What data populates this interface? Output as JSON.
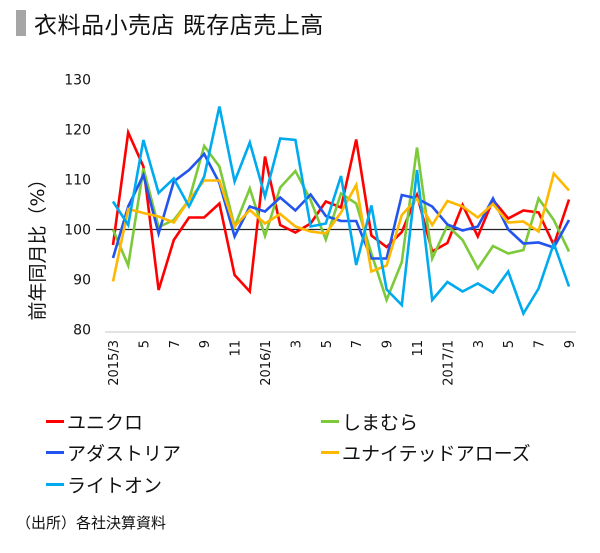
{
  "title": "衣料品小売店 既存店売上高",
  "footnote": "（出所）各社決算資料",
  "chart_data": {
    "type": "line",
    "title": "衣料品小売店 既存店売上高",
    "ylabel": "前年同月比（%）",
    "xlabel": "",
    "ylim": [
      80,
      130
    ],
    "yticks": [
      "130",
      "120",
      "110",
      "100",
      "90",
      "80"
    ],
    "ytick_values": [
      130,
      120,
      110,
      100,
      90,
      80
    ],
    "reference_line": 100,
    "grid": false,
    "legend_position": "bottom",
    "x": [
      "2015/3",
      "2015/4",
      "2015/5",
      "2015/6",
      "2015/7",
      "2015/8",
      "2015/9",
      "2015/10",
      "2015/11",
      "2015/12",
      "2016/1",
      "2016/2",
      "2016/3",
      "2016/4",
      "2016/5",
      "2016/6",
      "2016/7",
      "2016/8",
      "2016/9",
      "2016/10",
      "2016/11",
      "2016/12",
      "2017/1",
      "2017/2",
      "2017/3",
      "2017/4",
      "2017/5",
      "2017/6",
      "2017/7",
      "2017/8",
      "2017/9"
    ],
    "xtick_labels": [
      {
        "index": 0,
        "label": "2015/3"
      },
      {
        "index": 2,
        "label": "5"
      },
      {
        "index": 4,
        "label": "7"
      },
      {
        "index": 6,
        "label": "9"
      },
      {
        "index": 8,
        "label": "11"
      },
      {
        "index": 10,
        "label": "2016/1"
      },
      {
        "index": 12,
        "label": "3"
      },
      {
        "index": 14,
        "label": "5"
      },
      {
        "index": 16,
        "label": "7"
      },
      {
        "index": 18,
        "label": "9"
      },
      {
        "index": 20,
        "label": "11"
      },
      {
        "index": 22,
        "label": "2017/1"
      },
      {
        "index": 24,
        "label": "3"
      },
      {
        "index": 26,
        "label": "5"
      },
      {
        "index": 28,
        "label": "7"
      },
      {
        "index": 30,
        "label": "9"
      }
    ],
    "series": [
      {
        "name": "ユニクロ",
        "color": "#ff0000",
        "values": [
          96.9,
          119.4,
          112.6,
          87.9,
          97.9,
          102.4,
          102.4,
          105.2,
          90.9,
          87.6,
          114.6,
          100.9,
          99.4,
          101.2,
          105.6,
          104.4,
          118.0,
          98.8,
          96.5,
          99.5,
          106.9,
          95.6,
          97.3,
          104.9,
          98.6,
          105.9,
          102.2,
          103.8,
          103.4,
          96.9,
          106.0
        ]
      },
      {
        "name": "しまむら",
        "color": "#7cc93a",
        "values": [
          100.0,
          92.8,
          112.2,
          100.5,
          101.9,
          105.9,
          116.7,
          112.6,
          100.6,
          108.2,
          98.7,
          108.4,
          111.7,
          105.9,
          98.0,
          107.2,
          105.2,
          95.2,
          85.9,
          93.5,
          116.4,
          94.2,
          100.8,
          97.9,
          92.2,
          96.7,
          95.2,
          95.9,
          106.2,
          101.9,
          95.6
        ]
      },
      {
        "name": "アダストリア",
        "color": "#2255ee",
        "values": [
          94.3,
          104.6,
          110.9,
          99.2,
          109.6,
          111.9,
          115.1,
          109.3,
          98.6,
          104.6,
          103.6,
          106.4,
          103.8,
          107.0,
          102.7,
          101.7,
          101.7,
          94.2,
          94.2,
          106.9,
          106.2,
          104.6,
          101.0,
          99.8,
          100.6,
          106.2,
          100.0,
          97.2,
          97.4,
          96.4,
          101.9
        ]
      },
      {
        "name": "ユナイテッドアローズ",
        "color": "#ffb800",
        "values": [
          89.6,
          104.1,
          103.3,
          102.6,
          101.4,
          105.9,
          109.8,
          109.8,
          100.6,
          103.9,
          101.2,
          103.1,
          100.6,
          99.6,
          99.2,
          103.4,
          108.9,
          91.6,
          92.8,
          102.9,
          106.2,
          100.9,
          105.7,
          104.6,
          102.4,
          105.1,
          101.4,
          101.6,
          99.6,
          111.2,
          107.8
        ]
      },
      {
        "name": "ライトオン",
        "color": "#00aaee",
        "values": [
          105.6,
          100.9,
          117.9,
          107.3,
          110.2,
          104.6,
          110.6,
          124.6,
          109.6,
          117.4,
          106.6,
          118.2,
          117.9,
          100.6,
          101.2,
          110.7,
          92.9,
          104.8,
          88.0,
          84.9,
          111.9,
          85.9,
          89.5,
          87.6,
          89.2,
          87.4,
          91.6,
          83.2,
          88.2,
          97.2,
          88.6
        ]
      }
    ]
  },
  "legend": [
    {
      "label": "ユニクロ",
      "color": "#ff0000"
    },
    {
      "label": "しまむら",
      "color": "#7cc93a"
    },
    {
      "label": "アダストリア",
      "color": "#2255ee"
    },
    {
      "label": "ユナイテッドアローズ",
      "color": "#ffb800"
    },
    {
      "label": "ライトオン",
      "color": "#00aaee"
    }
  ]
}
